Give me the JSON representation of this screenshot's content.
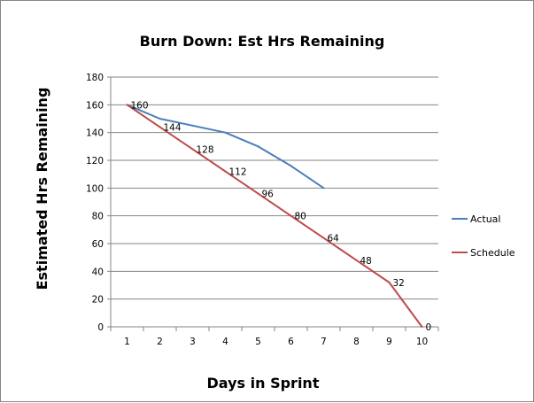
{
  "chart_data": {
    "type": "line",
    "title": "Burn Down: Est Hrs Remaining",
    "xlabel": "Days in Sprint",
    "ylabel": "Estimated Hrs Remaining",
    "categories": [
      "1",
      "2",
      "3",
      "4",
      "5",
      "6",
      "7",
      "8",
      "9",
      "10"
    ],
    "ylim": [
      0,
      180
    ],
    "yticks": [
      "0",
      "20",
      "40",
      "60",
      "80",
      "100",
      "120",
      "140",
      "160",
      "180"
    ],
    "grid": "horizontal",
    "legend_position": "right",
    "series": [
      {
        "name": "Actual",
        "color": "#4a7ebb",
        "values": [
          160,
          150,
          145,
          140,
          130,
          116,
          100,
          null,
          null,
          null
        ]
      },
      {
        "name": "Schedule",
        "color": "#be4b48",
        "values": [
          160,
          144,
          128,
          112,
          96,
          80,
          64,
          48,
          32,
          0
        ],
        "labels": [
          "160",
          "144",
          "128",
          "112",
          "96",
          "80",
          "64",
          "48",
          "32",
          "0"
        ]
      }
    ]
  }
}
